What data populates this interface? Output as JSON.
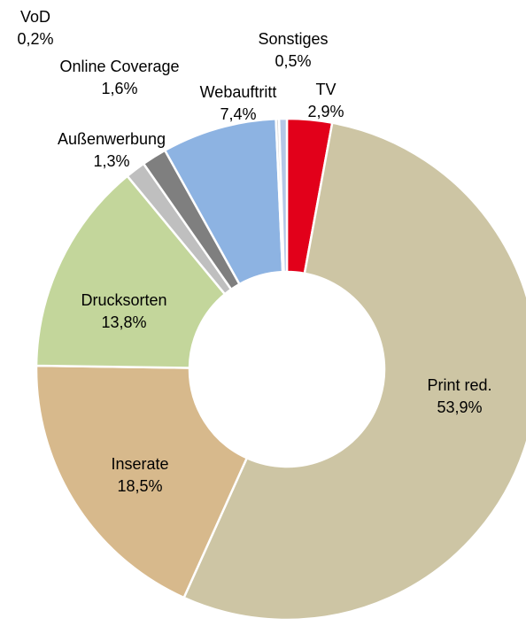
{
  "chart_data": {
    "type": "pie",
    "donut": true,
    "start_angle_deg": 0,
    "direction": "clockwise",
    "series": [
      {
        "name": "TV",
        "label_value": "2,9%",
        "value": 2.9,
        "color": "#e2001a"
      },
      {
        "name": "Print red.",
        "label_value": "53,9%",
        "value": 53.9,
        "color": "#cdc5a4"
      },
      {
        "name": "Inserate",
        "label_value": "18,5%",
        "value": 18.5,
        "color": "#d7b98c"
      },
      {
        "name": "Drucksorten",
        "label_value": "13,8%",
        "value": 13.8,
        "color": "#c3d69b"
      },
      {
        "name": "Außenwerbung",
        "label_value": "1,3%",
        "value": 1.3,
        "color": "#bfbfbf"
      },
      {
        "name": "Online Coverage",
        "label_value": "1,6%",
        "value": 1.6,
        "color": "#7f7f7f"
      },
      {
        "name": "Webauftritt",
        "label_value": "7,4%",
        "value": 7.4,
        "color": "#8db3e2"
      },
      {
        "name": "VoD",
        "label_value": "0,2%",
        "value": 0.2,
        "color": "#d9d9d9"
      },
      {
        "name": "Sonstiges",
        "label_value": "0,5%",
        "value": 0.5,
        "color": "#b4c7e7"
      }
    ]
  }
}
